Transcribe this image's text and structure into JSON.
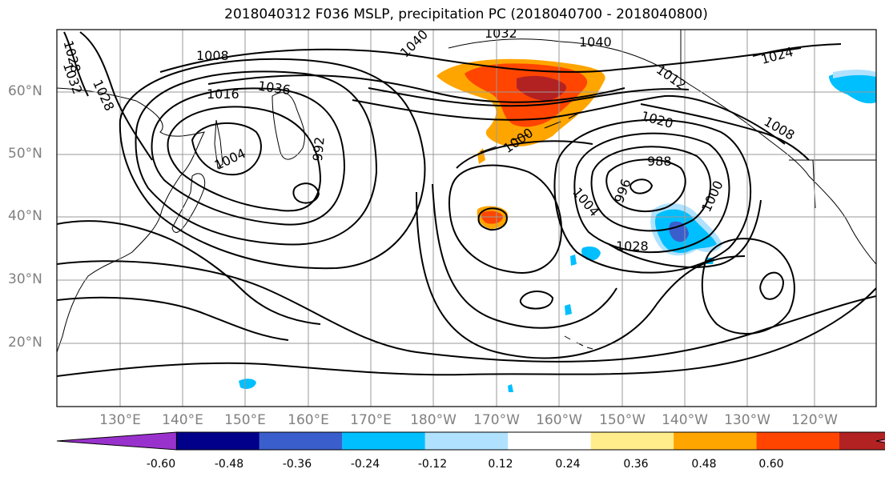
{
  "title": "2018040312 F036 MSLP, precipitation PC (2018040700 - 2018040800)",
  "axes": {
    "lat_labels": [
      "60°N",
      "50°N",
      "40°N",
      "30°N",
      "20°N"
    ],
    "lon_labels": [
      "130°E",
      "140°E",
      "150°E",
      "160°E",
      "170°E",
      "180°W",
      "170°W",
      "160°W",
      "150°W",
      "140°W",
      "130°W",
      "120°W"
    ]
  },
  "colorbar": {
    "colors": [
      "#9932cc",
      "#00008b",
      "#3a5fcd",
      "#00bfff",
      "#b0e2ff",
      "#ffffff",
      "#ffec8b",
      "#ffa500",
      "#ff4500",
      "#b22222",
      "#ff82ab"
    ],
    "tick_labels": [
      "-0.60",
      "-0.48",
      "-0.36",
      "-0.24",
      "-0.12",
      "0.12",
      "0.24",
      "0.36",
      "0.48",
      "0.60"
    ]
  },
  "contour_labels": [
    "1028",
    "1032",
    "1028",
    "1008",
    "1016",
    "1036",
    "1040",
    "1032",
    "1040",
    "1024",
    "1012",
    "1020",
    "1008",
    "1000",
    "1004",
    "992",
    "988",
    "996",
    "1000",
    "1004"
  ]
}
